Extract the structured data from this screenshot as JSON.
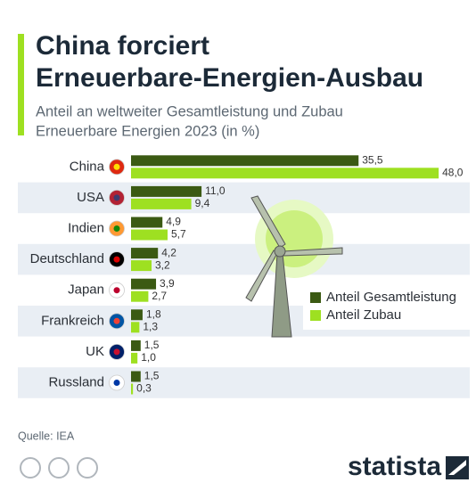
{
  "chart_data": {
    "type": "bar",
    "orientation": "horizontal",
    "title": [
      "China forciert",
      "Erneuerbare-Energien-Ausbau"
    ],
    "subtitle": [
      "Anteil an weltweiter Gesamtleistung und Zubau",
      "Erneuerbare Energien 2023 (in %)"
    ],
    "categories": [
      "China",
      "USA",
      "Indien",
      "Deutschland",
      "Japan",
      "Frankreich",
      "UK",
      "Russland"
    ],
    "series": [
      {
        "name": "Anteil Gesamtleistung",
        "color": "#3b5a13",
        "values": [
          35.5,
          11.0,
          4.9,
          4.2,
          3.9,
          1.8,
          1.5,
          1.5
        ],
        "value_labels": [
          "35,5",
          "11,0",
          "4,9",
          "4,2",
          "3,9",
          "1,8",
          "1,5",
          "1,5"
        ]
      },
      {
        "name": "Anteil Zubau",
        "color": "#9ee021",
        "values": [
          48.0,
          9.4,
          5.7,
          3.2,
          2.7,
          1.3,
          1.0,
          0.3
        ],
        "value_labels": [
          "48,0",
          "9,4",
          "5,7",
          "3,2",
          "2,7",
          "1,3",
          "1,0",
          "0,3"
        ]
      }
    ],
    "source": "Quelle: IEA",
    "brand": "statista"
  }
}
